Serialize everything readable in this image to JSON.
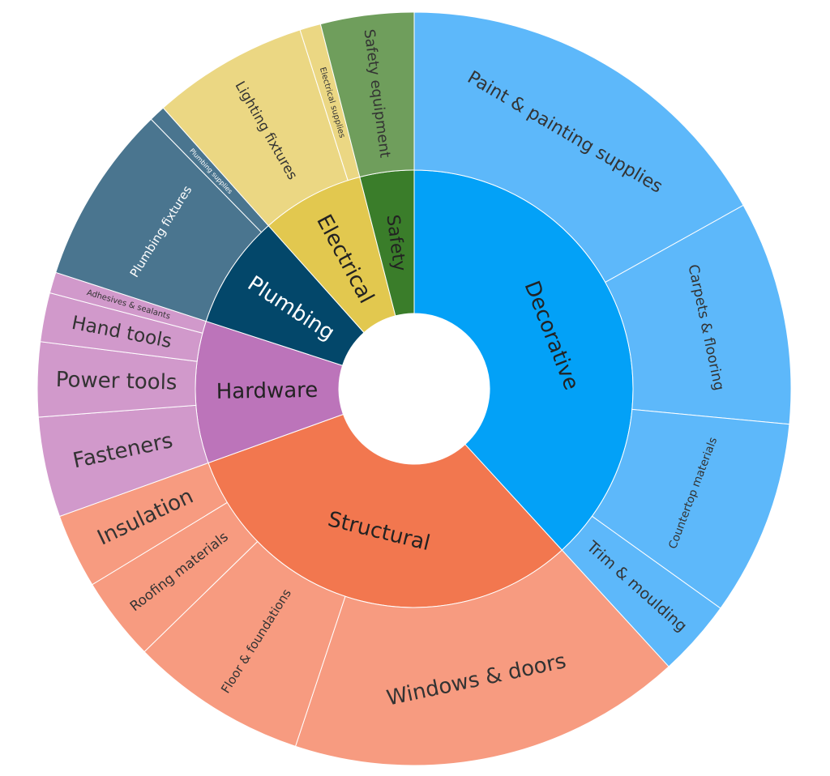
{
  "chart_data": {
    "type": "sunburst",
    "title": "",
    "unit": "share of total (%)",
    "start": "top, clockwise",
    "nodes": [
      {
        "label": "Decorative",
        "color": "#03a1f7",
        "child_color": "#5db8fa",
        "text_color": "#222222",
        "children": [
          {
            "label": "Paint & painting supplies",
            "value": 16.9
          },
          {
            "label": "Carpets & flooring",
            "value": 9.6
          },
          {
            "label": "Countertop materials",
            "value": 8.4
          },
          {
            "label": "Trim & moulding",
            "value": 3.3
          }
        ]
      },
      {
        "label": "Structural",
        "color": "#f2774f",
        "child_color": "#f79b80",
        "text_color": "#222222",
        "children": [
          {
            "label": "Windows & doors",
            "value": 16.9
          },
          {
            "label": "Floor & foundations",
            "value": 7.6
          },
          {
            "label": "Roofing materials",
            "value": 3.6
          },
          {
            "label": "Insulation",
            "value": 3.2
          }
        ]
      },
      {
        "label": "Hardware",
        "color": "#bc74ba",
        "child_color": "#d199cb",
        "text_color": "#222222",
        "children": [
          {
            "label": "Fasteners",
            "value": 4.3
          },
          {
            "label": "Power tools",
            "value": 3.2
          },
          {
            "label": "Hand tools",
            "value": 2.1
          },
          {
            "label": "Adhesives & sealants",
            "value": 0.9
          }
        ]
      },
      {
        "label": "Plumbing",
        "color": "#03476a",
        "child_color": "#4a758f",
        "text_color": "#ffffff",
        "children": [
          {
            "label": "Plumbing fixtures",
            "value": 7.7
          },
          {
            "label": "Plumbing supplies",
            "value": 0.7
          }
        ]
      },
      {
        "label": "Electrical",
        "color": "#e2c84f",
        "child_color": "#ebd783",
        "text_color": "#222222",
        "children": [
          {
            "label": "Lighting fixtures",
            "value": 6.7
          },
          {
            "label": "Electrical supplies",
            "value": 0.9
          }
        ]
      },
      {
        "label": "Safety",
        "color": "#3a7d2a",
        "child_color": "#6f9e5c",
        "text_color": "#222222",
        "children": [
          {
            "label": "Safety equipment",
            "value": 4.0
          }
        ]
      }
    ]
  }
}
